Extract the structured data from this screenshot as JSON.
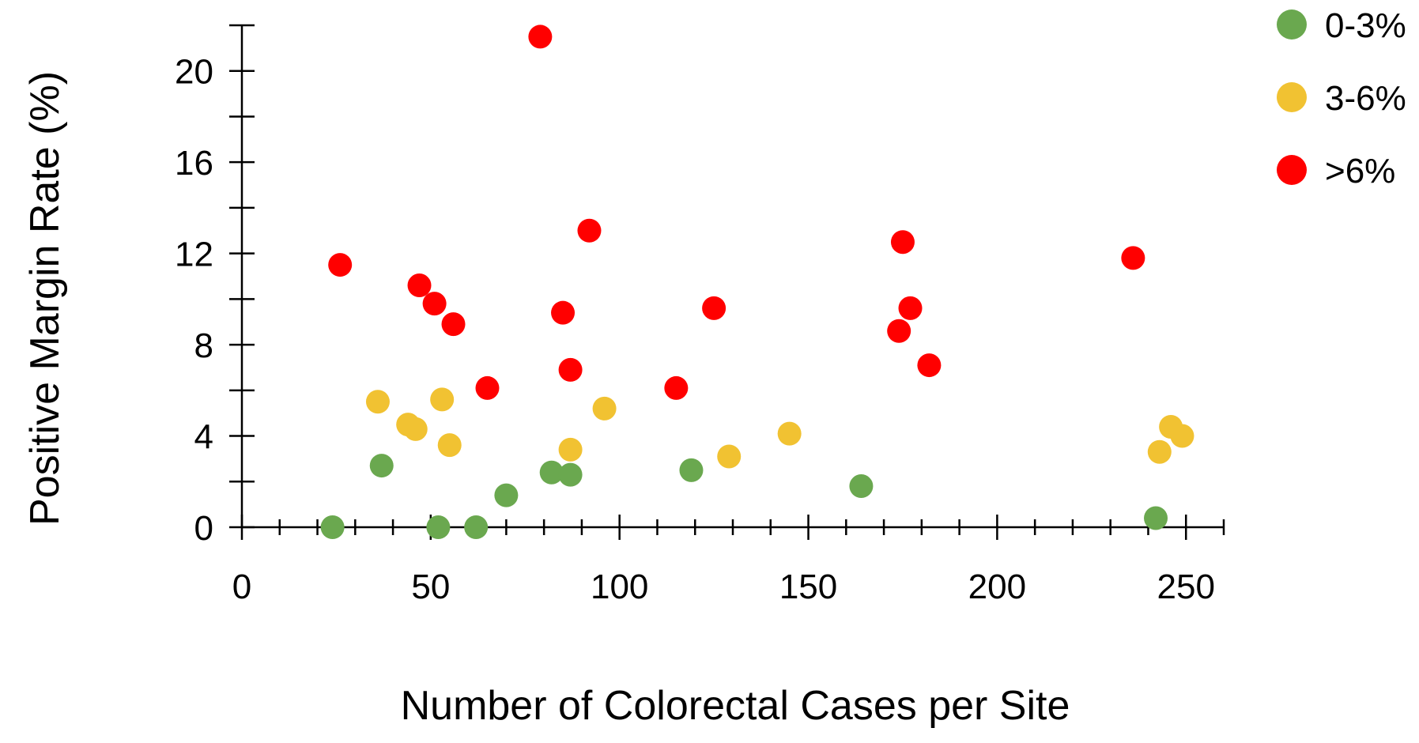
{
  "chart_data": {
    "type": "scatter",
    "title": "",
    "xlabel": "Number of Colorectal Cases per Site",
    "ylabel": "Positive Margin Rate (%)",
    "xlim": [
      0,
      260
    ],
    "ylim": [
      0,
      22
    ],
    "x_ticks": [
      0,
      50,
      100,
      150,
      200,
      250
    ],
    "y_ticks": [
      0,
      4,
      8,
      12,
      16,
      20
    ],
    "grid": false,
    "legend_position": "top-right",
    "series": [
      {
        "name": "0-3%",
        "color": "#6aa84f",
        "points": [
          [
            24,
            0
          ],
          [
            37,
            2.7
          ],
          [
            52,
            0
          ],
          [
            62,
            0
          ],
          [
            70,
            1.4
          ],
          [
            82,
            2.4
          ],
          [
            87,
            2.3
          ],
          [
            119,
            2.5
          ],
          [
            164,
            1.8
          ],
          [
            242,
            0.4
          ]
        ]
      },
      {
        "name": "3-6%",
        "color": "#f1c232",
        "points": [
          [
            36,
            5.5
          ],
          [
            44,
            4.5
          ],
          [
            46,
            4.3
          ],
          [
            53,
            5.6
          ],
          [
            55,
            3.6
          ],
          [
            87,
            3.4
          ],
          [
            96,
            5.2
          ],
          [
            129,
            3.1
          ],
          [
            145,
            4.1
          ],
          [
            243,
            3.3
          ],
          [
            246,
            4.4
          ],
          [
            249,
            4.0
          ]
        ]
      },
      {
        "name": ">6%",
        "color": "#ff0000",
        "points": [
          [
            26,
            11.5
          ],
          [
            47,
            10.6
          ],
          [
            51,
            9.8
          ],
          [
            56,
            8.9
          ],
          [
            65,
            6.1
          ],
          [
            79,
            21.5
          ],
          [
            85,
            9.4
          ],
          [
            87,
            6.9
          ],
          [
            92,
            13.0
          ],
          [
            115,
            6.1
          ],
          [
            125,
            9.6
          ],
          [
            174,
            8.6
          ],
          [
            175,
            12.5
          ],
          [
            177,
            9.6
          ],
          [
            182,
            7.1
          ],
          [
            236,
            11.8
          ]
        ]
      }
    ]
  }
}
